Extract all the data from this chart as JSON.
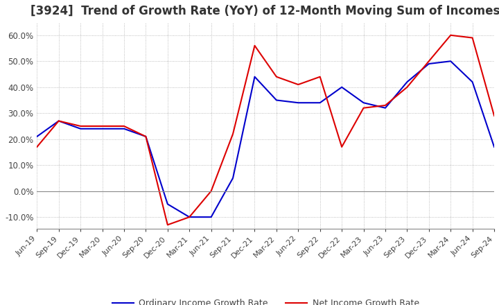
{
  "title": "[3924]  Trend of Growth Rate (YoY) of 12-Month Moving Sum of Incomes",
  "title_fontsize": 12,
  "ylim": [
    -0.145,
    0.65
  ],
  "yticks": [
    -0.1,
    0.0,
    0.1,
    0.2,
    0.3,
    0.4,
    0.5,
    0.6
  ],
  "background_color": "#ffffff",
  "grid_color": "#aaaaaa",
  "ordinary_color": "#0000cc",
  "net_color": "#dd0000",
  "legend_labels": [
    "Ordinary Income Growth Rate",
    "Net Income Growth Rate"
  ],
  "dates": [
    "Jun-19",
    "Sep-19",
    "Dec-19",
    "Mar-20",
    "Jun-20",
    "Sep-20",
    "Dec-20",
    "Mar-21",
    "Jun-21",
    "Sep-21",
    "Dec-21",
    "Mar-22",
    "Jun-22",
    "Sep-22",
    "Dec-22",
    "Mar-23",
    "Jun-23",
    "Sep-23",
    "Dec-23",
    "Mar-24",
    "Jun-24",
    "Sep-24"
  ],
  "ordinary": [
    0.21,
    0.27,
    0.24,
    0.24,
    0.24,
    0.21,
    -0.05,
    -0.1,
    -0.1,
    0.05,
    0.44,
    0.35,
    0.34,
    0.34,
    0.4,
    0.34,
    0.32,
    0.42,
    0.49,
    0.5,
    0.42,
    0.17
  ],
  "net": [
    0.17,
    0.27,
    0.25,
    0.25,
    0.25,
    0.21,
    -0.13,
    -0.1,
    0.0,
    0.22,
    0.56,
    0.44,
    0.41,
    0.44,
    0.17,
    0.32,
    0.33,
    0.4,
    0.5,
    0.6,
    0.59,
    0.29
  ]
}
